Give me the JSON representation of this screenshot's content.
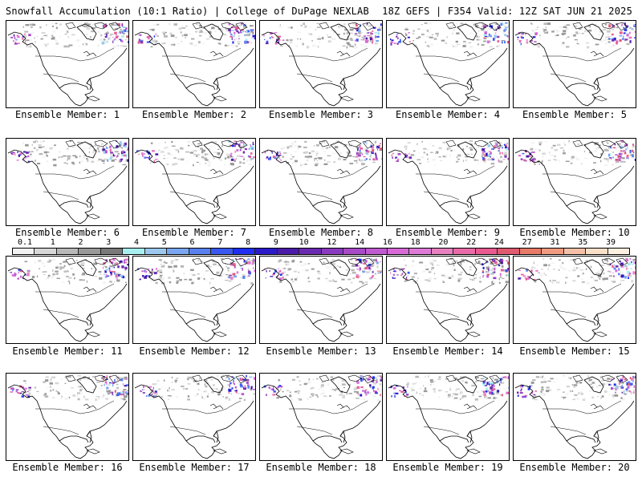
{
  "header": {
    "title_left": "Snowfall Accumulation (10:1 Ratio) | College of DuPage NEXLAB",
    "title_right": "18Z GEFS | F354 Valid: 12Z SAT JUN 21 2025"
  },
  "members": [
    {
      "label": "Ensemble Member: 1"
    },
    {
      "label": "Ensemble Member: 2"
    },
    {
      "label": "Ensemble Member: 3"
    },
    {
      "label": "Ensemble Member: 4"
    },
    {
      "label": "Ensemble Member: 5"
    },
    {
      "label": "Ensemble Member: 6"
    },
    {
      "label": "Ensemble Member: 7"
    },
    {
      "label": "Ensemble Member: 8"
    },
    {
      "label": "Ensemble Member: 9"
    },
    {
      "label": "Ensemble Member: 10"
    },
    {
      "label": "Ensemble Member: 11"
    },
    {
      "label": "Ensemble Member: 12"
    },
    {
      "label": "Ensemble Member: 13"
    },
    {
      "label": "Ensemble Member: 14"
    },
    {
      "label": "Ensemble Member: 15"
    },
    {
      "label": "Ensemble Member: 16"
    },
    {
      "label": "Ensemble Member: 17"
    },
    {
      "label": "Ensemble Member: 18"
    },
    {
      "label": "Ensemble Member: 19"
    },
    {
      "label": "Ensemble Member: 20"
    }
  ],
  "colorbar": {
    "ticks": [
      "0.1",
      "1",
      "2",
      "3",
      "4",
      "5",
      "6",
      "7",
      "8",
      "9",
      "10",
      "12",
      "14",
      "16",
      "18",
      "20",
      "22",
      "24",
      "27",
      "31",
      "35",
      "39"
    ],
    "colors": [
      "#f2f2f2",
      "#d6d6d6",
      "#b8b8b8",
      "#999999",
      "#7a7a7a",
      "#a8f0f0",
      "#9cc8f0",
      "#7aa6f0",
      "#5a80f0",
      "#3a58f0",
      "#1f2ef0",
      "#2a1ac8",
      "#4a1aa8",
      "#6a2ab0",
      "#8a3ac0",
      "#a84ac8",
      "#c05ad0",
      "#d86ad8",
      "#e07ad8",
      "#e880c0",
      "#e86aa8",
      "#e85a90",
      "#e05a70",
      "#e87a68",
      "#f09a80",
      "#f6c0a8",
      "#fae0c8",
      "#fdf0e0"
    ]
  }
}
